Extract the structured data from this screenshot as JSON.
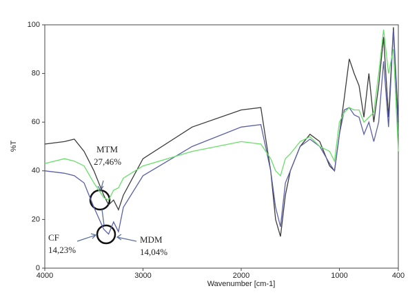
{
  "chart_data": {
    "type": "line",
    "xlabel": "Wavenumber [cm-1]",
    "ylabel": "%T",
    "x": [
      4000,
      3800,
      3700,
      3600,
      3500,
      3400,
      3350,
      3300,
      3250,
      3200,
      3000,
      2500,
      2000,
      1800,
      1700,
      1650,
      1600,
      1550,
      1500,
      1400,
      1300,
      1200,
      1100,
      1050,
      1000,
      950,
      900,
      850,
      800,
      750,
      700,
      650,
      600,
      550,
      500,
      450,
      400
    ],
    "series": [
      {
        "color": "#3a3a3a",
        "values": [
          51,
          52,
          53,
          48,
          40,
          30,
          26,
          28,
          24,
          30,
          45,
          58,
          65,
          66,
          40,
          20,
          13,
          30,
          40,
          50,
          55,
          52,
          42,
          40,
          55,
          70,
          86,
          80,
          75,
          62,
          80,
          60,
          75,
          95,
          62,
          99,
          60
        ]
      },
      {
        "color": "#5a5fa8",
        "values": [
          40,
          39,
          38,
          35,
          25,
          16,
          14,
          19,
          15,
          25,
          38,
          50,
          58,
          59,
          40,
          25,
          17,
          35,
          40,
          50,
          53,
          50,
          43,
          40,
          55,
          65,
          66,
          63,
          62,
          55,
          60,
          52,
          60,
          85,
          58,
          98,
          55
        ]
      },
      {
        "color": "#66e066",
        "values": [
          43,
          45,
          44,
          42,
          35,
          29,
          28,
          32,
          33,
          37,
          42,
          48,
          52,
          51,
          45,
          40,
          38,
          45,
          47,
          52,
          54,
          50,
          48,
          44,
          60,
          64,
          66,
          65,
          65,
          60,
          62,
          64,
          80,
          98,
          80,
          90,
          48
        ]
      }
    ],
    "xlim": [
      4000,
      400
    ],
    "xticks": [
      4000,
      3000,
      2000,
      1000,
      400
    ],
    "ylim": [
      0,
      100
    ],
    "yticks": [
      0,
      20,
      40,
      60,
      80,
      100
    ],
    "annotations": [
      "MTM",
      "27,46%",
      "CF",
      "14,23%",
      "MDM",
      "14,04%"
    ]
  }
}
